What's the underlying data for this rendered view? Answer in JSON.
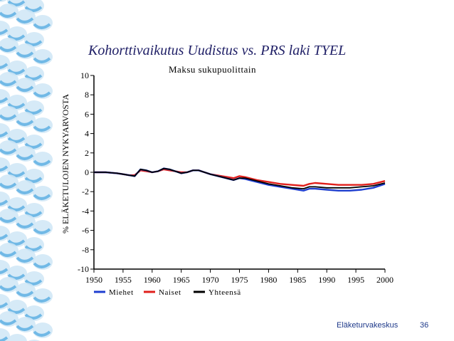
{
  "slide": {
    "title": "Kohorttivaikutus Uudistus vs. PRS laki TYEL",
    "footer_org": "Eläketurvakeskus",
    "page_number": "36"
  },
  "colors": {
    "title": "#1f1f66",
    "footer": "#1f3a8a",
    "decor_light": "#cfe6f6",
    "decor_dark": "#1f8fd8"
  },
  "chart_data": {
    "type": "line",
    "title": "Maksu sukupuolittain",
    "xlabel": "",
    "ylabel": "% ELÄKETULOJEN NYKYARVOSTA",
    "xlim": [
      1950,
      2000
    ],
    "ylim": [
      -10,
      10
    ],
    "x_ticks": [
      1950,
      1955,
      1960,
      1965,
      1970,
      1975,
      1980,
      1985,
      1990,
      1995,
      2000
    ],
    "y_ticks": [
      -10,
      -8,
      -6,
      -4,
      -2,
      0,
      2,
      4,
      6,
      8,
      10
    ],
    "grid": false,
    "legend_position": "bottom",
    "x": [
      1950,
      1952,
      1954,
      1955,
      1956,
      1957,
      1958,
      1959,
      1960,
      1961,
      1962,
      1963,
      1964,
      1965,
      1966,
      1967,
      1968,
      1969,
      1970,
      1972,
      1974,
      1975,
      1976,
      1978,
      1980,
      1982,
      1984,
      1986,
      1987,
      1988,
      1990,
      1992,
      1994,
      1996,
      1998,
      2000
    ],
    "series": [
      {
        "name": "Miehet",
        "color": "#1f3fd0",
        "values": [
          0.0,
          0.0,
          -0.1,
          -0.2,
          -0.3,
          -0.4,
          0.3,
          0.2,
          0.0,
          0.1,
          0.4,
          0.3,
          0.1,
          -0.1,
          0.0,
          0.2,
          0.2,
          0.0,
          -0.2,
          -0.5,
          -0.8,
          -0.6,
          -0.7,
          -1.0,
          -1.3,
          -1.5,
          -1.7,
          -1.9,
          -1.7,
          -1.7,
          -1.8,
          -1.9,
          -1.9,
          -1.8,
          -1.6,
          -1.2
        ]
      },
      {
        "name": "Naiset",
        "color": "#e0201c",
        "values": [
          0.0,
          0.0,
          -0.1,
          -0.2,
          -0.3,
          -0.3,
          0.2,
          0.1,
          0.0,
          0.1,
          0.3,
          0.2,
          0.1,
          0.0,
          0.0,
          0.2,
          0.2,
          0.0,
          -0.2,
          -0.4,
          -0.6,
          -0.4,
          -0.5,
          -0.8,
          -1.0,
          -1.2,
          -1.3,
          -1.4,
          -1.2,
          -1.1,
          -1.2,
          -1.3,
          -1.3,
          -1.3,
          -1.2,
          -0.9
        ]
      },
      {
        "name": "Yhteensä",
        "color": "#000000",
        "values": [
          0.0,
          0.0,
          -0.1,
          -0.2,
          -0.3,
          -0.4,
          0.3,
          0.2,
          0.0,
          0.1,
          0.4,
          0.3,
          0.1,
          -0.1,
          0.0,
          0.2,
          0.2,
          0.0,
          -0.2,
          -0.5,
          -0.8,
          -0.6,
          -0.6,
          -0.9,
          -1.2,
          -1.4,
          -1.6,
          -1.7,
          -1.5,
          -1.5,
          -1.6,
          -1.6,
          -1.6,
          -1.5,
          -1.4,
          -1.1
        ]
      }
    ]
  }
}
